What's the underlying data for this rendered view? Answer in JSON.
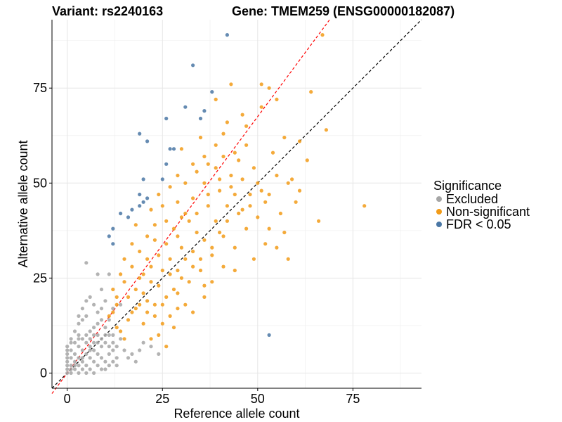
{
  "chart_data": {
    "type": "scatter",
    "title_left": "Variant: rs2240163",
    "title_right": "Gene: TMEM259 (ENSG00000182087)",
    "xlabel": "Reference allele count",
    "ylabel": "Alternative allele count",
    "xlim": [
      -4,
      93
    ],
    "ylim": [
      -4,
      93
    ],
    "x_ticks": [
      0,
      25,
      50,
      75
    ],
    "y_ticks": [
      0,
      25,
      50,
      75
    ],
    "grid": true,
    "reference_lines": [
      {
        "name": "identity",
        "slope": 1.0,
        "intercept": 0,
        "color": "#000000",
        "style": "dashed"
      },
      {
        "name": "fit",
        "slope": 1.35,
        "intercept": 0,
        "color": "#ff0000",
        "style": "dashed"
      }
    ],
    "legend": {
      "title": "Significance",
      "position": "right",
      "entries": [
        {
          "name": "Excluded",
          "color": "#a6a6a6"
        },
        {
          "name": "Non-significant",
          "color": "#f29b18"
        },
        {
          "name": "FDR < 0.05",
          "color": "#4a77a5"
        }
      ]
    },
    "series": [
      {
        "name": "FDR < 0.05",
        "color": "#4a77a5",
        "points": [
          [
            42,
            89
          ],
          [
            33,
            81
          ],
          [
            38,
            74
          ],
          [
            31,
            70
          ],
          [
            36,
            69
          ],
          [
            35,
            67
          ],
          [
            26,
            67
          ],
          [
            19,
            63
          ],
          [
            21,
            61
          ],
          [
            27,
            59
          ],
          [
            28,
            59
          ],
          [
            26,
            55
          ],
          [
            20,
            51
          ],
          [
            25,
            51
          ],
          [
            19,
            47
          ],
          [
            21,
            46
          ],
          [
            20,
            45
          ],
          [
            19,
            44
          ],
          [
            17,
            43
          ],
          [
            14,
            42
          ],
          [
            16,
            41
          ],
          [
            12,
            38
          ],
          [
            11,
            36
          ],
          [
            12,
            34
          ],
          [
            53,
            10
          ]
        ]
      },
      {
        "name": "Non-significant",
        "color": "#f29b18",
        "points": [
          [
            67,
            89
          ],
          [
            43,
            76
          ],
          [
            51,
            76
          ],
          [
            53,
            75
          ],
          [
            64,
            74
          ],
          [
            55,
            72
          ],
          [
            39,
            72
          ],
          [
            46,
            68
          ],
          [
            68,
            64
          ],
          [
            57,
            62
          ],
          [
            61,
            61
          ],
          [
            63,
            56
          ],
          [
            78,
            44
          ],
          [
            60,
            45
          ],
          [
            66,
            40
          ],
          [
            57,
            37
          ],
          [
            56,
            42
          ],
          [
            53,
            38
          ],
          [
            52,
            45
          ],
          [
            59,
            51
          ],
          [
            55,
            52
          ],
          [
            49,
            54
          ],
          [
            44,
            58
          ],
          [
            47,
            60
          ],
          [
            41,
            63
          ],
          [
            35,
            62
          ],
          [
            30,
            59
          ],
          [
            45,
            56
          ],
          [
            50,
            50
          ],
          [
            53,
            47
          ],
          [
            48,
            47
          ],
          [
            46,
            43
          ],
          [
            42,
            40
          ],
          [
            40,
            37
          ],
          [
            44,
            33
          ],
          [
            38,
            33
          ],
          [
            35,
            30
          ],
          [
            33,
            28
          ],
          [
            30,
            25
          ],
          [
            28,
            22
          ],
          [
            25,
            18
          ],
          [
            23,
            15
          ],
          [
            20,
            13
          ],
          [
            15,
            9
          ],
          [
            13,
            12
          ],
          [
            22,
            9
          ],
          [
            24,
            10
          ],
          [
            26,
            7
          ],
          [
            28,
            12
          ],
          [
            33,
            16
          ],
          [
            36,
            20
          ],
          [
            38,
            24
          ],
          [
            32,
            40
          ],
          [
            29,
            45
          ],
          [
            27,
            49
          ],
          [
            24,
            47
          ],
          [
            22,
            43
          ],
          [
            18,
            39
          ],
          [
            17,
            34
          ],
          [
            15,
            30
          ],
          [
            14,
            26
          ],
          [
            12,
            22
          ],
          [
            13,
            18
          ],
          [
            11,
            15
          ],
          [
            16,
            20
          ],
          [
            19,
            25
          ],
          [
            21,
            30
          ],
          [
            23,
            35
          ],
          [
            26,
            40
          ],
          [
            31,
            50
          ],
          [
            34,
            53
          ],
          [
            37,
            55
          ],
          [
            40,
            48
          ],
          [
            43,
            52
          ],
          [
            47,
            38
          ],
          [
            50,
            41
          ],
          [
            55,
            33
          ],
          [
            58,
            30
          ],
          [
            37,
            44
          ],
          [
            34,
            37
          ],
          [
            30,
            33
          ],
          [
            27,
            30
          ],
          [
            25,
            27
          ],
          [
            22,
            24
          ],
          [
            20,
            21
          ],
          [
            18,
            17
          ],
          [
            16,
            14
          ],
          [
            14,
            11
          ],
          [
            29,
            36
          ],
          [
            31,
            42
          ],
          [
            33,
            46
          ],
          [
            36,
            50
          ],
          [
            39,
            54
          ],
          [
            41,
            57
          ],
          [
            44,
            47
          ],
          [
            46,
            51
          ],
          [
            42,
            44
          ],
          [
            39,
            40
          ],
          [
            36,
            35
          ],
          [
            33,
            32
          ],
          [
            31,
            30
          ],
          [
            29,
            27
          ],
          [
            27,
            26
          ],
          [
            24,
            23
          ],
          [
            21,
            19
          ],
          [
            19,
            18
          ],
          [
            17,
            16
          ],
          [
            24,
            31
          ],
          [
            26,
            34
          ],
          [
            28,
            38
          ],
          [
            30,
            41
          ],
          [
            22,
            28
          ],
          [
            20,
            26
          ],
          [
            18,
            22
          ],
          [
            34,
            42
          ],
          [
            37,
            47
          ],
          [
            40,
            51
          ],
          [
            43,
            49
          ],
          [
            48,
            44
          ],
          [
            51,
            48
          ],
          [
            45,
            42
          ],
          [
            41,
            36
          ],
          [
            38,
            31
          ],
          [
            35,
            27
          ],
          [
            32,
            24
          ],
          [
            29,
            21
          ],
          [
            26,
            20
          ],
          [
            23,
            18
          ],
          [
            21,
            16
          ],
          [
            47,
            65
          ],
          [
            51,
            70
          ],
          [
            36,
            57
          ],
          [
            33,
            55
          ],
          [
            29,
            52
          ],
          [
            25,
            44
          ],
          [
            23,
            39
          ],
          [
            21,
            36
          ],
          [
            19,
            32
          ],
          [
            17,
            28
          ],
          [
            15,
            24
          ],
          [
            13,
            20
          ],
          [
            12,
            16
          ],
          [
            39,
            60
          ],
          [
            42,
            66
          ],
          [
            54,
            58
          ],
          [
            49,
            30
          ],
          [
            52,
            34
          ],
          [
            61,
            48
          ],
          [
            58,
            50
          ],
          [
            44,
            27
          ],
          [
            41,
            28
          ],
          [
            36,
            23
          ],
          [
            31,
            18
          ],
          [
            29,
            17
          ],
          [
            27,
            15
          ],
          [
            25,
            13
          ]
        ]
      },
      {
        "name": "Excluded",
        "color": "#a6a6a6",
        "points": [
          [
            5,
            29
          ],
          [
            8,
            26
          ],
          [
            11,
            26
          ],
          [
            9,
            22
          ],
          [
            6,
            20
          ],
          [
            10,
            19
          ],
          [
            4,
            17
          ],
          [
            8,
            16
          ],
          [
            5,
            15
          ],
          [
            9,
            14
          ],
          [
            3,
            13
          ],
          [
            7,
            12
          ],
          [
            10,
            12
          ],
          [
            2,
            11
          ],
          [
            5,
            10
          ],
          [
            8,
            10
          ],
          [
            11,
            10
          ],
          [
            1,
            9
          ],
          [
            4,
            9
          ],
          [
            7,
            8
          ],
          [
            10,
            8
          ],
          [
            0,
            7
          ],
          [
            3,
            7
          ],
          [
            6,
            7
          ],
          [
            9,
            7
          ],
          [
            1,
            6
          ],
          [
            4,
            6
          ],
          [
            7,
            6
          ],
          [
            12,
            6
          ],
          [
            0,
            5
          ],
          [
            2,
            5
          ],
          [
            5,
            5
          ],
          [
            8,
            5
          ],
          [
            11,
            5
          ],
          [
            1,
            4
          ],
          [
            3,
            4
          ],
          [
            6,
            4
          ],
          [
            9,
            4
          ],
          [
            0,
            3
          ],
          [
            2,
            3
          ],
          [
            4,
            3
          ],
          [
            7,
            3
          ],
          [
            10,
            3
          ],
          [
            1,
            2
          ],
          [
            3,
            2
          ],
          [
            5,
            2
          ],
          [
            8,
            2
          ],
          [
            0,
            1
          ],
          [
            2,
            1
          ],
          [
            4,
            1
          ],
          [
            6,
            1
          ],
          [
            9,
            1
          ],
          [
            1,
            0
          ],
          [
            3,
            0
          ],
          [
            5,
            0
          ],
          [
            7,
            0
          ],
          [
            2,
            8
          ],
          [
            6,
            9
          ],
          [
            3,
            10
          ],
          [
            12,
            8
          ],
          [
            13,
            7
          ],
          [
            14,
            9
          ],
          [
            15,
            6
          ],
          [
            16,
            4
          ],
          [
            18,
            3
          ],
          [
            20,
            8
          ],
          [
            22,
            7
          ],
          [
            24,
            5
          ],
          [
            19,
            6
          ],
          [
            17,
            5
          ],
          [
            13,
            4
          ],
          [
            6,
            11
          ],
          [
            8,
            13
          ],
          [
            11,
            14
          ],
          [
            12,
            17
          ],
          [
            14,
            18
          ],
          [
            4,
            14
          ],
          [
            3,
            15
          ],
          [
            7,
            18
          ],
          [
            9,
            17
          ],
          [
            5,
            19
          ],
          [
            1,
            1
          ],
          [
            0,
            0
          ],
          [
            2,
            2
          ],
          [
            4,
            4
          ],
          [
            6,
            6
          ],
          [
            8,
            8
          ],
          [
            10,
            10
          ],
          [
            11,
            7
          ],
          [
            12,
            10
          ],
          [
            9,
            9
          ],
          [
            7,
            10
          ],
          [
            5,
            8
          ],
          [
            3,
            9
          ],
          [
            1,
            8
          ],
          [
            0,
            6
          ],
          [
            0,
            4
          ],
          [
            0,
            2
          ],
          [
            10,
            1
          ],
          [
            11,
            2
          ],
          [
            12,
            3
          ],
          [
            13,
            2
          ]
        ]
      }
    ]
  }
}
